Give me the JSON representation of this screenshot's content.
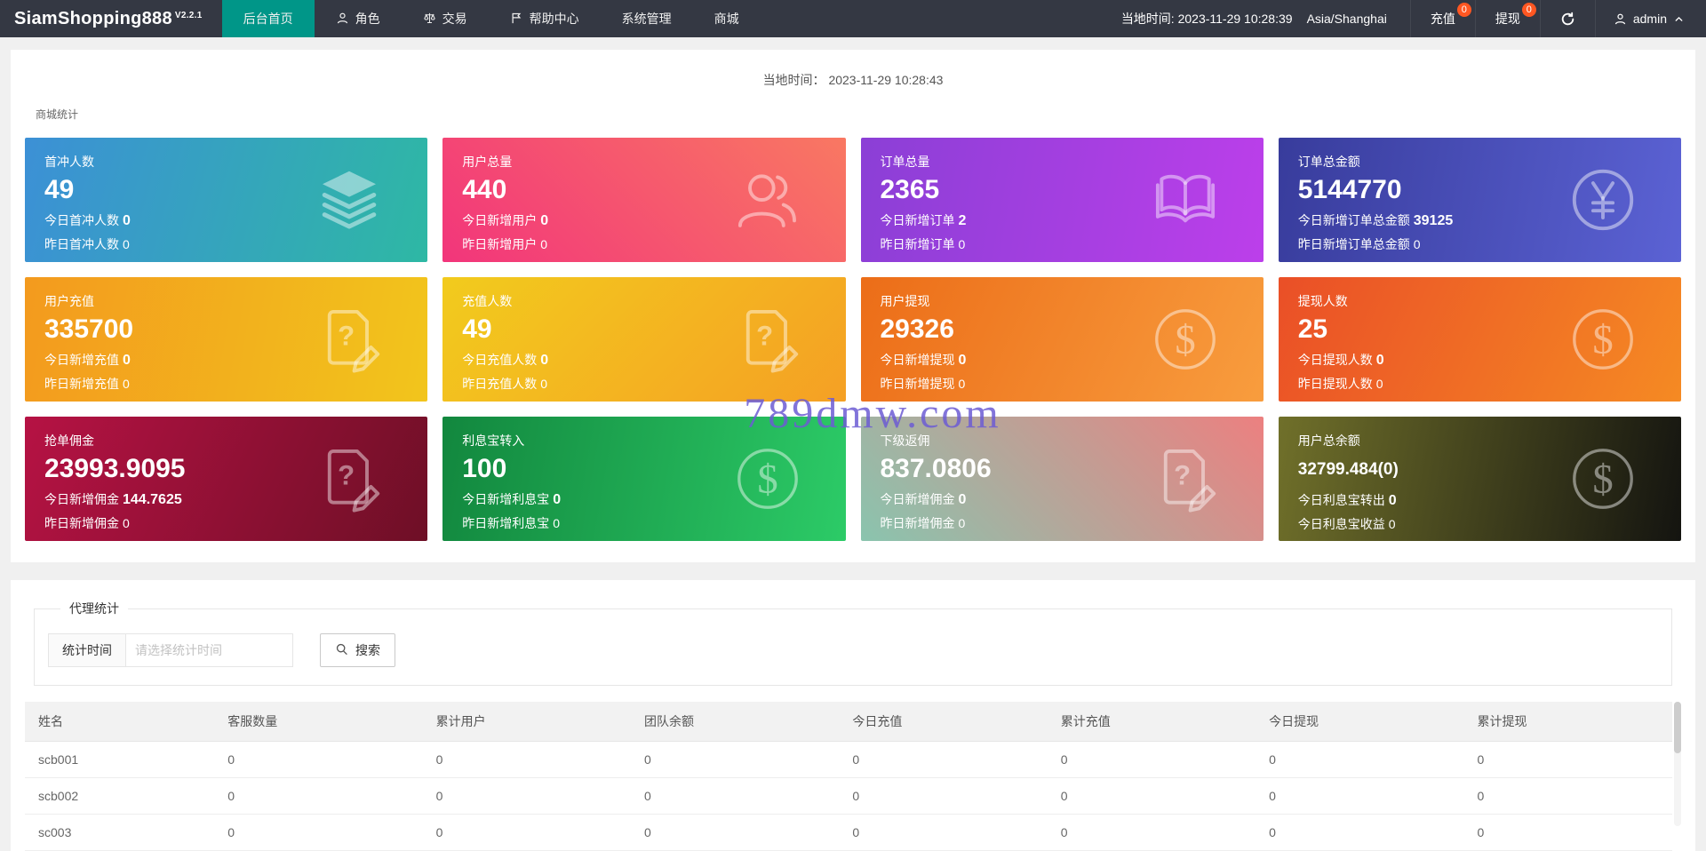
{
  "brand": {
    "name": "SiamShopping888",
    "version": "V2.2.1"
  },
  "nav": {
    "items": [
      {
        "label": "后台首页",
        "active": true
      },
      {
        "label": "角色",
        "icon": "user-icon"
      },
      {
        "label": "交易",
        "icon": "scales-icon"
      },
      {
        "label": "帮助中心",
        "icon": "flag-icon"
      },
      {
        "label": "系统管理"
      },
      {
        "label": "商城"
      }
    ],
    "local_time": "当地时间: 2023-11-29 10:28:39",
    "timezone": "Asia/Shanghai",
    "recharge_label": "充值",
    "recharge_badge": "0",
    "withdraw_label": "提现",
    "withdraw_badge": "0",
    "username": "admin"
  },
  "overview": {
    "time_label": "当地时间：",
    "time_value": "2023-11-29 10:28:43",
    "section_title": "商城统计",
    "cards": [
      {
        "title": "首冲人数",
        "value": "49",
        "line2_label": "今日首冲人数",
        "line2_value": "0",
        "line3_label": "昨日首冲人数",
        "line3_value": "0",
        "icon": "layers-icon",
        "gradient": [
          "#3C90D6",
          "#2EB8A4"
        ],
        "angle": "105deg"
      },
      {
        "title": "用户总量",
        "value": "440",
        "line2_label": "今日新增用户",
        "line2_value": "0",
        "line3_label": "昨日新增用户",
        "line3_value": "0",
        "icon": "users-icon",
        "gradient": [
          "#F2357B",
          "#F97862"
        ],
        "angle": "45deg"
      },
      {
        "title": "订单总量",
        "value": "2365",
        "line2_label": "今日新增订单",
        "line2_value": "2",
        "line3_label": "昨日新增订单",
        "line3_value": "0",
        "icon": "book-icon",
        "gradient": [
          "#8B3FD6",
          "#BC3FEA"
        ],
        "angle": "100deg"
      },
      {
        "title": "订单总金额",
        "value": "5144770",
        "line2_label": "今日新增订单总金额",
        "line2_value": "39125",
        "line3_label": "昨日新增订单总金额",
        "line3_value": "0",
        "icon": "yen-circle-icon",
        "gradient": [
          "#383C9C",
          "#5B62D4"
        ],
        "angle": "100deg"
      },
      {
        "title": "用户充值",
        "value": "335700",
        "line2_label": "今日新增充值",
        "line2_value": "0",
        "line3_label": "昨日新增充值",
        "line3_value": "0",
        "icon": "doc-question-icon",
        "gradient": [
          "#F39A1E",
          "#F2C51C"
        ],
        "angle": "100deg"
      },
      {
        "title": "充值人数",
        "value": "49",
        "line2_label": "今日充值人数",
        "line2_value": "0",
        "line3_label": "昨日充值人数",
        "line3_value": "0",
        "icon": "doc-question-icon",
        "gradient": [
          "#F2CB1D",
          "#F5A024"
        ],
        "angle": "135deg"
      },
      {
        "title": "用户提现",
        "value": "29326",
        "line2_label": "今日新增提现",
        "line2_value": "0",
        "line3_label": "昨日新增提现",
        "line3_value": "0",
        "icon": "dollar-circle-icon",
        "gradient": [
          "#EC6D18",
          "#F89D3E"
        ],
        "angle": "115deg"
      },
      {
        "title": "提现人数",
        "value": "25",
        "line2_label": "今日提现人数",
        "line2_value": "0",
        "line3_label": "昨日提现人数",
        "line3_value": "0",
        "icon": "dollar-circle-icon",
        "gradient": [
          "#EA4F27",
          "#F58A23"
        ],
        "angle": "115deg"
      },
      {
        "title": "抢单佣金",
        "value": "23993.9095",
        "line2_label": "今日新增佣金",
        "line2_value": "144.7625",
        "line3_label": "昨日新增佣金",
        "line3_value": "0",
        "icon": "doc-question-icon",
        "gradient": [
          "#B61244",
          "#6E0F26"
        ],
        "angle": "115deg"
      },
      {
        "title": "利息宝转入",
        "value": "100",
        "line2_label": "今日新增利息宝",
        "line2_value": "0",
        "line3_label": "昨日新增利息宝",
        "line3_value": "0",
        "icon": "dollar-circle-icon",
        "gradient": [
          "#12873E",
          "#2CCB67"
        ],
        "angle": "100deg"
      },
      {
        "title": "下级返佣",
        "value": "837.0806",
        "line2_label": "今日新增佣金",
        "line2_value": "0",
        "line3_label": "昨日新增佣金",
        "line3_value": "0",
        "icon": "doc-question-icon",
        "gradient": [
          "#8AC4AE",
          "#EC8080"
        ],
        "angle": "45deg"
      },
      {
        "title": "用户总余额",
        "value": "32799.484(0)",
        "small_value": true,
        "line2_label": "今日利息宝转出",
        "line2_value": "0",
        "line3_label": "今日利息宝收益",
        "line3_value": "0",
        "icon": "dollar-circle-icon",
        "gradient": [
          "#70702A",
          "#141410"
        ],
        "angle": "100deg"
      }
    ]
  },
  "agent": {
    "legend": "代理统计",
    "filter_label": "统计时间",
    "filter_placeholder": "请选择统计时间",
    "search_label": "搜索",
    "table": {
      "headers": [
        "姓名",
        "客服数量",
        "累计用户",
        "团队余额",
        "今日充值",
        "累计充值",
        "今日提现",
        "累计提现"
      ],
      "rows": [
        [
          "scb001",
          "0",
          "0",
          "0",
          "0",
          "0",
          "0",
          "0"
        ],
        [
          "scb002",
          "0",
          "0",
          "0",
          "0",
          "0",
          "0",
          "0"
        ],
        [
          "sc003",
          "0",
          "0",
          "0",
          "0",
          "0",
          "0",
          "0"
        ]
      ]
    }
  },
  "watermark": {
    "text": "789dmw.com"
  },
  "colors": {
    "navbar_bg": "#343843",
    "active_nav": "#009688",
    "badge": "#FF5722",
    "watermark": "#6C5CD3"
  }
}
